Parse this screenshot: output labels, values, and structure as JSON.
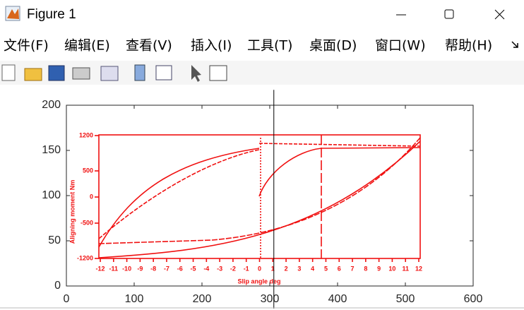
{
  "window": {
    "title": "Figure 1",
    "menu": [
      "文件(F)",
      "编辑(E)",
      "查看(V)",
      "插入(I)",
      "工具(T)",
      "桌面(D)",
      "窗口(W)",
      "帮助(H)"
    ]
  },
  "chart_data": {
    "type": "line",
    "xlim": [
      0,
      600
    ],
    "ylim": [
      0,
      200
    ],
    "xticks": [
      0,
      100,
      200,
      300,
      400,
      500,
      600
    ],
    "yticks": [
      0,
      50,
      100,
      150,
      200
    ],
    "series": [
      {
        "color": "#000000",
        "x": [
          306,
          306
        ],
        "values": [
          -25,
          217
        ]
      }
    ],
    "image": {
      "xlabel": "Slip angle deg",
      "ylabel": "Aligning moment Nm",
      "xticks": [
        "-12",
        "-11",
        "-10",
        "-9",
        "-8",
        "-7",
        "-6",
        "-5",
        "-4",
        "-3",
        "-2",
        "-1",
        "0",
        "1",
        "2",
        "3",
        "4",
        "5",
        "6",
        "7",
        "8",
        "9",
        "10",
        "11",
        "12"
      ],
      "yticks": [
        "1200",
        "500",
        "0",
        "-500",
        "-1200"
      ]
    }
  }
}
